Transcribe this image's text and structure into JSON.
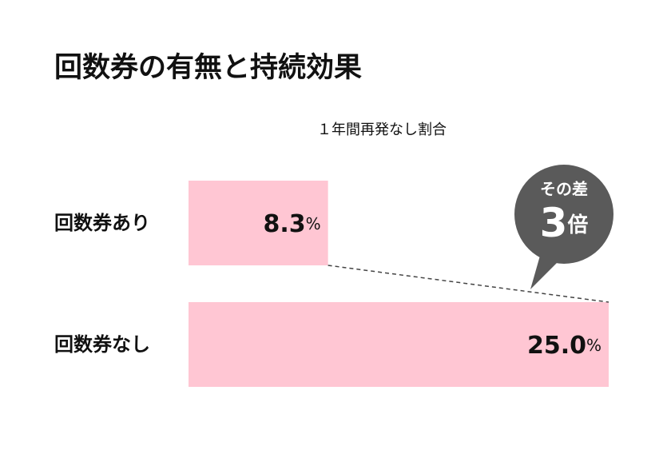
{
  "chart_data": {
    "type": "hbar",
    "title": "回数券の有無と持続効果",
    "subtitle": "１年間再発なし割合",
    "categories": [
      "回数券あり",
      "回数券なし"
    ],
    "values": [
      8.3,
      25.0
    ],
    "value_labels": [
      "8.3%",
      "25.0%"
    ],
    "color": "#ffc6d3",
    "xlim": [
      0,
      25
    ],
    "annotation": [
      "その差",
      "3倍"
    ]
  }
}
